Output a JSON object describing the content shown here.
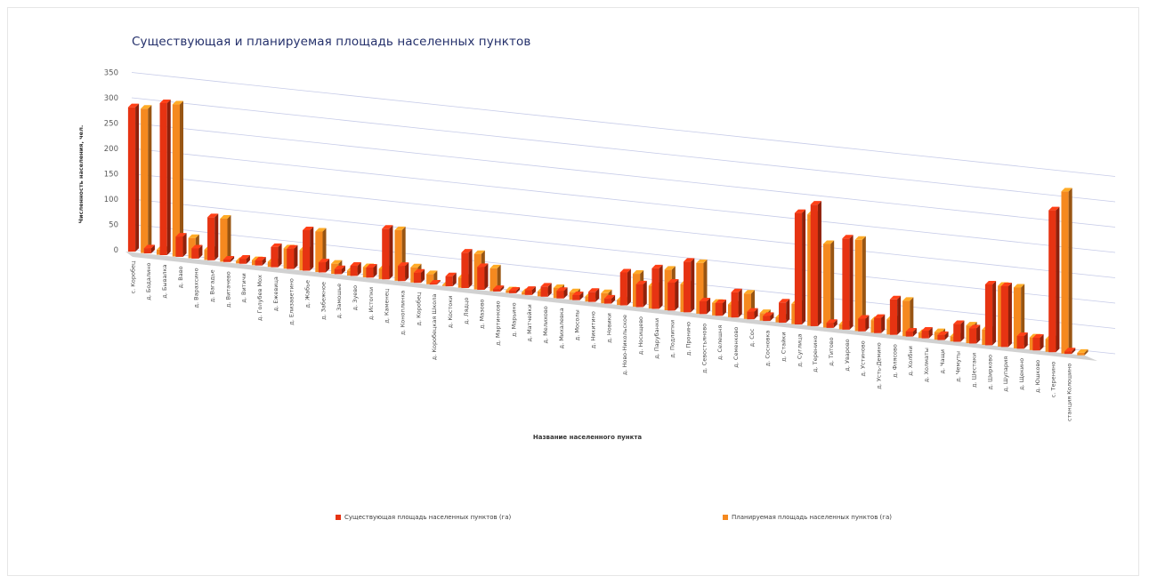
{
  "chart_data": {
    "type": "bar",
    "title": "Существующая и планируемая площадь населенных пунктов",
    "xlabel": "Название населенного пункта",
    "ylabel": "Численность населения, чел.",
    "ylim": [
      0,
      350
    ],
    "yticks": [
      "0",
      "50",
      "100",
      "150",
      "200",
      "250",
      "300",
      "350"
    ],
    "grid": true,
    "legend_position": "bottom",
    "categories": [
      "с. Коробец",
      "д. Бодалино",
      "д. Бывалка",
      "д. Ваво",
      "д. Варахсино",
      "д. Вагадье",
      "д. Витачево",
      "д. Витичи",
      "д. Голубев Мох",
      "д. Ежевица",
      "д. Елизаветино",
      "д. Жабье",
      "д. Забежное",
      "д. Замошье",
      "д. Зуево",
      "д. Истопки",
      "д. Каменец",
      "д. Коноплинка",
      "д. Коробец",
      "д. Коробецкая Школа",
      "д. Костоки",
      "д. Лядцо",
      "д. Мазово",
      "д. Мартинково",
      "д. Марьино",
      "д. Матчейки",
      "д. Мелихово",
      "д. Михалевка",
      "д. Мосолы",
      "д. Никитино",
      "д. Новики",
      "д. Ново-Никольское",
      "д. Носищево",
      "д. Парубанки",
      "д. Подлипки",
      "д. Пронино",
      "д. Севостьяново",
      "д. Селешня",
      "д. Семенково",
      "д. Сос",
      "д. Сосновка",
      "д. Стайки",
      "д. Суглица",
      "д. Теренино",
      "д. Титово",
      "д. Уварово",
      "д. Устиново",
      "д. Усть-Демино",
      "д. Флясово",
      "д. Холбни",
      "д. Холматы",
      "д. Чащи",
      "д. Чемуты",
      "д. Шестаки",
      "д. Ширково",
      "д. Шупария",
      "д. Щекино",
      "д. Юшково",
      "с. Теренино",
      "станция Колошино"
    ],
    "series": [
      {
        "name": "Существующая площадь населенных пунктов (га)",
        "color": "#e63312",
        "values": [
          285,
          10,
          300,
          40,
          20,
          85,
          5,
          10,
          10,
          40,
          40,
          80,
          20,
          10,
          20,
          20,
          100,
          30,
          20,
          2,
          20,
          70,
          45,
          5,
          5,
          10,
          20,
          15,
          10,
          20,
          10,
          65,
          45,
          80,
          55,
          100,
          25,
          25,
          50,
          15,
          10,
          40,
          220,
          240,
          10,
          180,
          25,
          30,
          70,
          10,
          15,
          10,
          35,
          30,
          120,
          120,
          25,
          25,
          280,
          5
        ]
      },
      {
        "name": "Планируемая площадь населенных пунктов (га)",
        "color": "#f5891f",
        "values": [
          285,
          10,
          300,
          40,
          20,
          85,
          5,
          10,
          10,
          40,
          40,
          80,
          20,
          10,
          20,
          20,
          100,
          30,
          20,
          2,
          20,
          70,
          45,
          5,
          5,
          10,
          20,
          15,
          10,
          20,
          10,
          65,
          45,
          80,
          55,
          100,
          25,
          25,
          50,
          15,
          10,
          40,
          220,
          165,
          10,
          180,
          25,
          30,
          70,
          10,
          15,
          10,
          35,
          30,
          120,
          120,
          25,
          25,
          320,
          5
        ]
      }
    ]
  }
}
